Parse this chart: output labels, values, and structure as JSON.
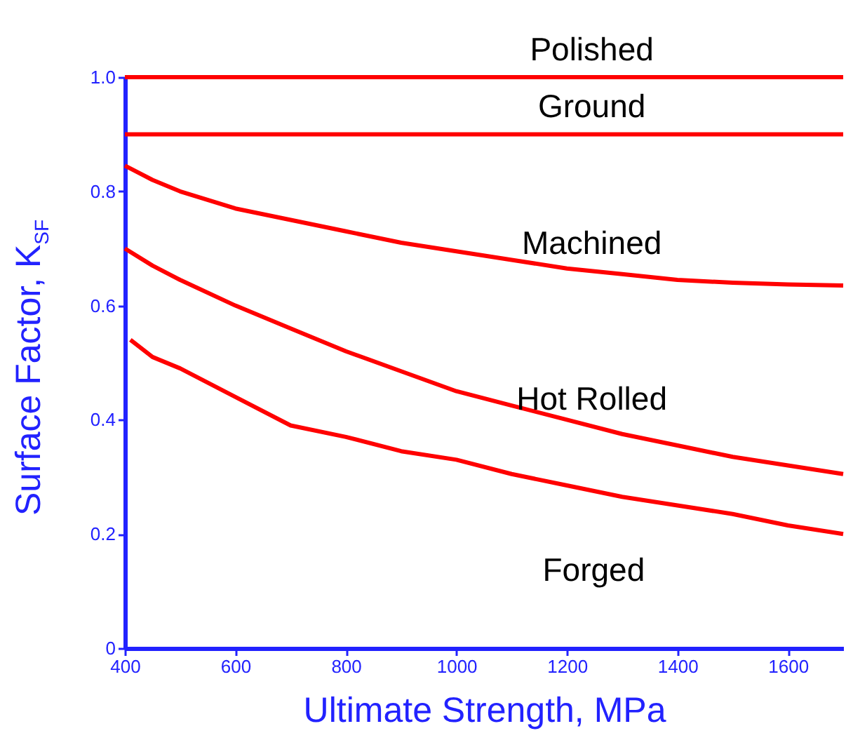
{
  "chart_data": {
    "type": "line",
    "xlabel": "Ultimate Strength, MPa",
    "ylabel": "Surface Factor, K$_{SF}$",
    "xlim": [
      400,
      1700
    ],
    "xticks": [
      400,
      600,
      800,
      1000,
      1200,
      1400,
      1600
    ],
    "ylim": [
      0,
      1
    ],
    "yticks": [
      0,
      0.2,
      0.4,
      0.6,
      0.8,
      {
        "value": 1,
        "label": "1.0"
      }
    ],
    "grid": false,
    "legend": false,
    "marker": "none",
    "line_style": "solid",
    "series": [
      {
        "name": "Polished",
        "color": "#ff0000",
        "x": [
          400,
          1700
        ],
        "values": [
          1,
          1
        ]
      },
      {
        "name": "Ground",
        "color": "#ff0000",
        "x": [
          400,
          1700
        ],
        "values": [
          0.9,
          0.9
        ]
      },
      {
        "name": "Machined",
        "color": "#ff0000",
        "x": [
          400,
          450,
          500,
          600,
          700,
          800,
          900,
          1000,
          1100,
          1200,
          1300,
          1400,
          1500,
          1600,
          1700
        ],
        "values": [
          0.845,
          0.82,
          0.8,
          0.77,
          0.75,
          0.73,
          0.71,
          0.695,
          0.68,
          0.665,
          0.655,
          0.645,
          0.64,
          0.637,
          0.635
        ]
      },
      {
        "name": "Hot Rolled",
        "color": "#ff0000",
        "x": [
          400,
          450,
          500,
          600,
          700,
          800,
          900,
          1000,
          1100,
          1200,
          1300,
          1400,
          1500,
          1600,
          1700
        ],
        "values": [
          0.7,
          0.67,
          0.645,
          0.6,
          0.56,
          0.52,
          0.485,
          0.45,
          0.425,
          0.4,
          0.375,
          0.355,
          0.335,
          0.32,
          0.305
        ]
      },
      {
        "name": "Forged",
        "color": "#ff0000",
        "x": [
          410,
          450,
          500,
          600,
          700,
          800,
          900,
          1000,
          1100,
          1200,
          1300,
          1400,
          1500,
          1600,
          1700
        ],
        "values": [
          0.54,
          0.51,
          0.49,
          0.44,
          0.39,
          0.37,
          0.345,
          0.33,
          0.305,
          0.285,
          0.265,
          0.25,
          0.235,
          0.215,
          0.2
        ]
      }
    ]
  }
}
